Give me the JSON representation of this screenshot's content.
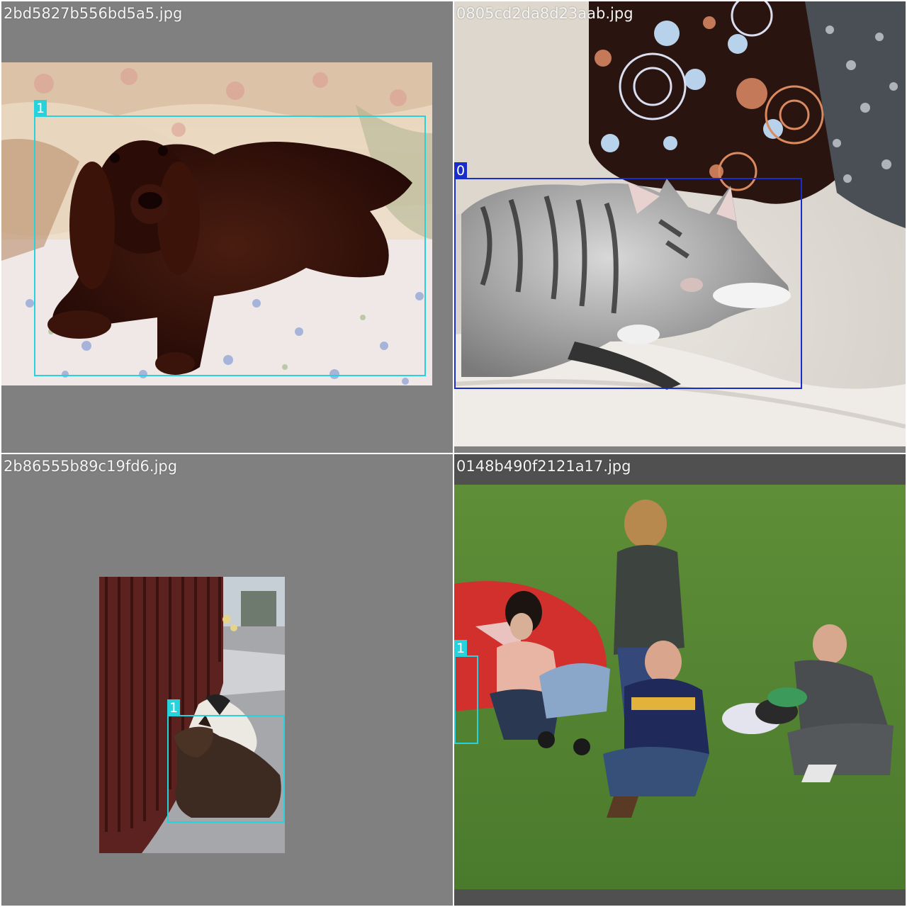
{
  "colors": {
    "dog_class_box": "#26d2dc",
    "cat_class_box": "#1a2dc8",
    "letterbox_fill": "#808080"
  },
  "tiles": [
    {
      "filename": "2bd5827b556bd5a5.jpg",
      "image_icon": "long-haired-dachshund-on-floral-bedspread",
      "boxes": [
        {
          "label": "1",
          "color": "#26d2dc"
        }
      ]
    },
    {
      "filename": "0805cd2da8d23aab.jpg",
      "image_icon": "tabby-cat-sleeping-on-sofa",
      "boxes": [
        {
          "label": "0",
          "color": "#1a2dc8"
        }
      ]
    },
    {
      "filename": "2b86555b89c19fd6.jpg",
      "image_icon": "two-dogs-resting-by-fence",
      "boxes": [
        {
          "label": "1",
          "color": "#26d2dc"
        }
      ]
    },
    {
      "filename": "0148b490f2121a17.jpg",
      "image_icon": "people-sitting-on-grass-field",
      "boxes": [
        {
          "label": "1",
          "color": "#26d2dc"
        }
      ]
    }
  ]
}
